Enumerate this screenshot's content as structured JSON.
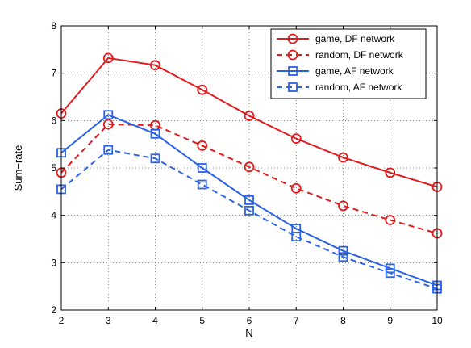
{
  "chart_data": {
    "type": "line",
    "xlabel": "N",
    "ylabel": "Sum−rate",
    "xlim": [
      2,
      10
    ],
    "ylim": [
      2,
      8
    ],
    "x_ticks": [
      "2",
      "3",
      "4",
      "5",
      "6",
      "7",
      "8",
      "9",
      "10"
    ],
    "y_ticks": [
      "2",
      "3",
      "4",
      "5",
      "6",
      "7",
      "8"
    ],
    "grid": true,
    "legend_position": "top-right",
    "x": [
      2,
      3,
      4,
      5,
      6,
      7,
      8,
      9,
      10
    ],
    "series": [
      {
        "name": "game, DF network",
        "values": [
          6.15,
          7.32,
          7.17,
          6.65,
          6.1,
          5.62,
          5.22,
          4.9,
          4.6
        ],
        "color": "#e41a1c",
        "marker": "circle",
        "line_style": "solid"
      },
      {
        "name": "random, DF network",
        "values": [
          4.9,
          5.92,
          5.9,
          5.47,
          5.02,
          4.57,
          4.2,
          3.9,
          3.62
        ],
        "color": "#e41a1c",
        "marker": "circle",
        "line_style": "dashed"
      },
      {
        "name": "game, AF network",
        "values": [
          5.32,
          6.12,
          5.72,
          5.0,
          4.32,
          3.72,
          3.25,
          2.88,
          2.52
        ],
        "color": "#2a62e8",
        "marker": "square",
        "line_style": "solid"
      },
      {
        "name": "random, AF network",
        "values": [
          4.55,
          5.38,
          5.2,
          4.65,
          4.1,
          3.55,
          3.12,
          2.78,
          2.45
        ],
        "color": "#2a62e8",
        "marker": "square",
        "line_style": "dashed"
      }
    ]
  }
}
